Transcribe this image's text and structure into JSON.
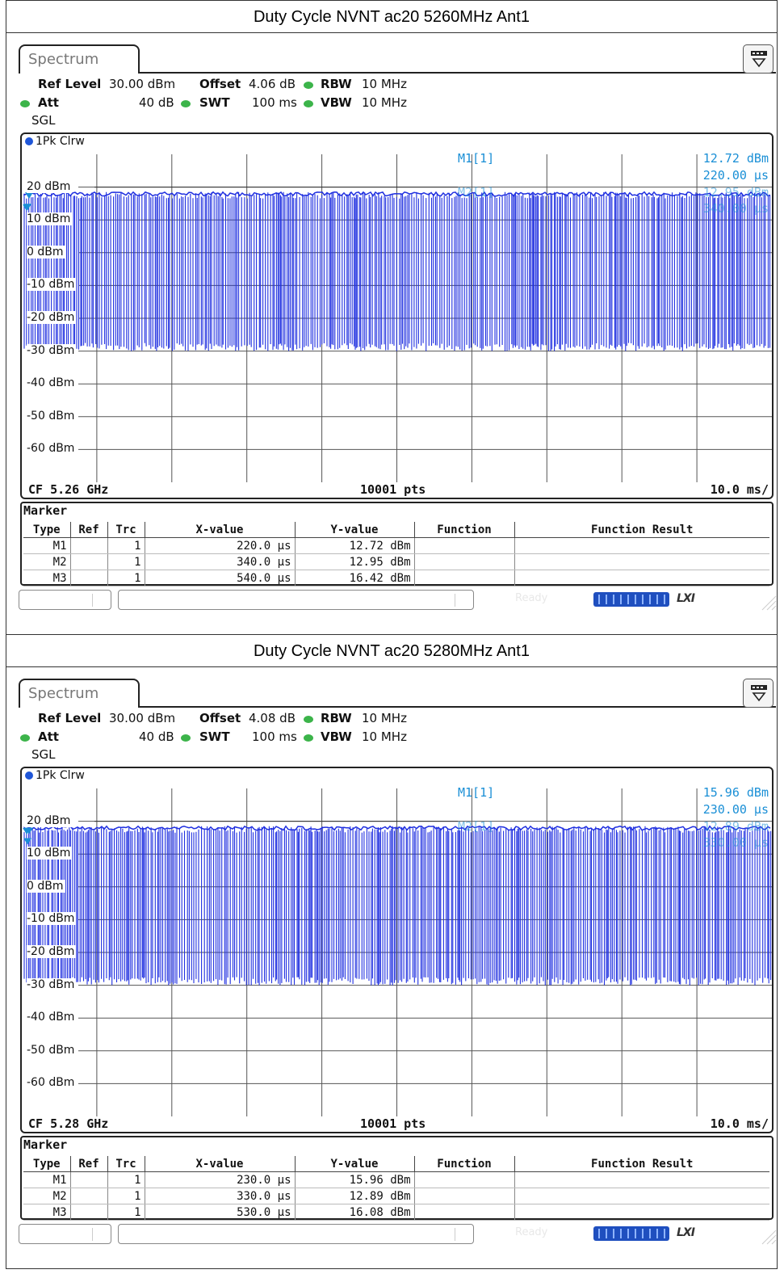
{
  "screens": [
    {
      "title": "Duty Cycle NVNT ac20 5260MHz Ant1",
      "tab": "Spectrum",
      "settings": {
        "ref_level_label": "Ref Level",
        "ref_level": "30.00 dBm",
        "offset_label": "Offset",
        "offset": "4.06 dB",
        "rbw_label": "RBW",
        "rbw": "10 MHz",
        "att_label": "Att",
        "att": "40 dB",
        "swt_label": "SWT",
        "swt": "100 ms",
        "vbw_label": "VBW",
        "vbw": "10 MHz",
        "mode": "SGL"
      },
      "trace_label": "1Pk Clrw",
      "y_labels": [
        "20 dBm",
        "10 dBm",
        "0 dBm",
        "-10 dBm",
        "-20 dBm",
        "-30 dBm",
        "-40 dBm",
        "-50 dBm",
        "-60 dBm"
      ],
      "marker_readout": {
        "name": "M1[1]",
        "value": "12.72 dBm",
        "time": "220.00 µs",
        "m2_name": "M2[1]",
        "m2_value": "12.95 dBm",
        "m2_time": "340.00 µs"
      },
      "footer": {
        "cf": "CF 5.26 GHz",
        "pts": "10001 pts",
        "scale": "10.0 ms/"
      },
      "marker_table": {
        "title": "Marker",
        "headers": [
          "Type",
          "Ref",
          "Trc",
          "X-value",
          "Y-value",
          "Function",
          "Function Result"
        ],
        "rows": [
          [
            "M1",
            "",
            "1",
            "220.0 µs",
            "12.72 dBm",
            "",
            ""
          ],
          [
            "M2",
            "",
            "1",
            "340.0 µs",
            "12.95 dBm",
            "",
            ""
          ],
          [
            "M3",
            "",
            "1",
            "540.0 µs",
            "16.42 dBm",
            "",
            ""
          ]
        ]
      },
      "status": {
        "ready": "Ready",
        "lxi": "LXI"
      },
      "chart_data": {
        "type": "line",
        "title": "",
        "x_unit": "ms",
        "xlim": [
          0,
          100
        ],
        "ylim": [
          -70,
          30
        ],
        "y_ticks": [
          20,
          10,
          0,
          -10,
          -20,
          -30,
          -40,
          -50,
          -60
        ],
        "series": [
          {
            "name": "1Pk Clrw",
            "color": "#1f2fe0",
            "envelope_high_dBm": 18,
            "envelope_low_dBm": -30,
            "points": 10001
          }
        ],
        "markers": [
          {
            "name": "M1",
            "x_us": 220.0,
            "y_dBm": 12.72
          },
          {
            "name": "M2",
            "x_us": 340.0,
            "y_dBm": 12.95
          },
          {
            "name": "M3",
            "x_us": 540.0,
            "y_dBm": 16.42
          }
        ]
      }
    },
    {
      "title": "Duty Cycle NVNT ac20 5280MHz Ant1",
      "tab": "Spectrum",
      "settings": {
        "ref_level_label": "Ref Level",
        "ref_level": "30.00 dBm",
        "offset_label": "Offset",
        "offset": "4.08 dB",
        "rbw_label": "RBW",
        "rbw": "10 MHz",
        "att_label": "Att",
        "att": "40 dB",
        "swt_label": "SWT",
        "swt": "100 ms",
        "vbw_label": "VBW",
        "vbw": "10 MHz",
        "mode": "SGL"
      },
      "trace_label": "1Pk Clrw",
      "y_labels": [
        "20 dBm",
        "10 dBm",
        "0 dBm",
        "-10 dBm",
        "-20 dBm",
        "-30 dBm",
        "-40 dBm",
        "-50 dBm",
        "-60 dBm"
      ],
      "marker_readout": {
        "name": "M1[1]",
        "value": "15.96 dBm",
        "time": "230.00 µs",
        "m2_name": "M2[1]",
        "m2_value": "12.89 dBm",
        "m2_time": "330.00 µs"
      },
      "footer": {
        "cf": "CF 5.28 GHz",
        "pts": "10001 pts",
        "scale": "10.0 ms/"
      },
      "marker_table": {
        "title": "Marker",
        "headers": [
          "Type",
          "Ref",
          "Trc",
          "X-value",
          "Y-value",
          "Function",
          "Function Result"
        ],
        "rows": [
          [
            "M1",
            "",
            "1",
            "230.0 µs",
            "15.96 dBm",
            "",
            ""
          ],
          [
            "M2",
            "",
            "1",
            "330.0 µs",
            "12.89 dBm",
            "",
            ""
          ],
          [
            "M3",
            "",
            "1",
            "530.0 µs",
            "16.08 dBm",
            "",
            ""
          ]
        ]
      },
      "status": {
        "ready": "Ready",
        "lxi": "LXI"
      },
      "chart_data": {
        "type": "line",
        "title": "",
        "x_unit": "ms",
        "xlim": [
          0,
          100
        ],
        "ylim": [
          -70,
          30
        ],
        "y_ticks": [
          20,
          10,
          0,
          -10,
          -20,
          -30,
          -40,
          -50,
          -60
        ],
        "series": [
          {
            "name": "1Pk Clrw",
            "color": "#1f2fe0",
            "envelope_high_dBm": 18,
            "envelope_low_dBm": -30,
            "points": 10001
          }
        ],
        "markers": [
          {
            "name": "M1",
            "x_us": 230.0,
            "y_dBm": 15.96
          },
          {
            "name": "M2",
            "x_us": 330.0,
            "y_dBm": 12.89
          },
          {
            "name": "M3",
            "x_us": 530.0,
            "y_dBm": 16.08
          }
        ]
      }
    }
  ]
}
